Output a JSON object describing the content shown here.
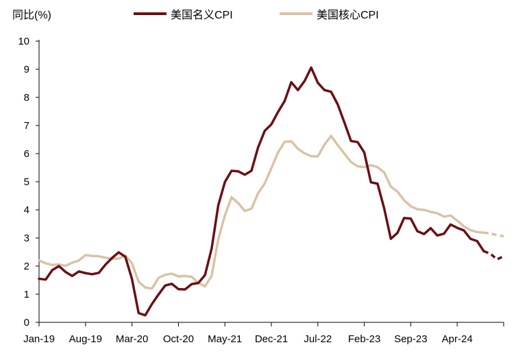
{
  "chart_data": {
    "type": "line",
    "ylabel": "同比(%)",
    "ylim": [
      0,
      10
    ],
    "yticks": [
      "0",
      "1",
      "2",
      "3",
      "4",
      "5",
      "6",
      "7",
      "8",
      "9",
      "10"
    ],
    "xtick_labels": [
      "Jan-19",
      "Aug-19",
      "Mar-20",
      "Oct-20",
      "May-21",
      "Dec-21",
      "Jul-22",
      "Feb-23",
      "Sep-23",
      "Apr-24"
    ],
    "x_start": "Jan-19",
    "x_end": "Dec-24",
    "legend_position": "top",
    "grid": false,
    "series": [
      {
        "name": "美国名义CPI",
        "color": "#6b0f14",
        "values": [
          1.55,
          1.52,
          1.86,
          2.0,
          1.79,
          1.65,
          1.81,
          1.75,
          1.71,
          1.76,
          2.05,
          2.29,
          2.49,
          2.33,
          1.54,
          0.33,
          0.25,
          0.65,
          0.99,
          1.31,
          1.37,
          1.18,
          1.17,
          1.36,
          1.4,
          1.68,
          2.62,
          4.16,
          4.99,
          5.39,
          5.37,
          5.25,
          5.39,
          6.22,
          6.81,
          7.04,
          7.48,
          7.87,
          8.54,
          8.26,
          8.58,
          9.06,
          8.52,
          8.26,
          8.2,
          7.75,
          7.11,
          6.45,
          6.41,
          6.04,
          4.98,
          4.93,
          4.05,
          2.97,
          3.18,
          3.71,
          3.69,
          3.24,
          3.14,
          3.35,
          3.09,
          3.15,
          3.48,
          3.36,
          3.27,
          2.97,
          2.89,
          2.53
        ],
        "forecast_values": [
          2.44,
          2.24,
          2.35
        ]
      },
      {
        "name": "美国核心CPI",
        "color": "#d8c3a5",
        "values": [
          2.2,
          2.1,
          2.04,
          2.06,
          2.01,
          2.12,
          2.2,
          2.39,
          2.36,
          2.35,
          2.3,
          2.26,
          2.27,
          2.37,
          2.1,
          1.44,
          1.24,
          1.2,
          1.58,
          1.69,
          1.73,
          1.63,
          1.65,
          1.62,
          1.4,
          1.28,
          1.65,
          2.96,
          3.8,
          4.45,
          4.24,
          3.96,
          4.04,
          4.59,
          4.94,
          5.48,
          6.04,
          6.42,
          6.44,
          6.17,
          6.01,
          5.91,
          5.9,
          6.32,
          6.63,
          6.3,
          6.0,
          5.7,
          5.55,
          5.52,
          5.59,
          5.52,
          5.33,
          4.83,
          4.65,
          4.34,
          4.13,
          4.02,
          4.0,
          3.93,
          3.88,
          3.76,
          3.8,
          3.62,
          3.41,
          3.28,
          3.21,
          3.19
        ],
        "forecast_values": [
          3.16,
          3.1,
          3.06
        ]
      }
    ]
  }
}
